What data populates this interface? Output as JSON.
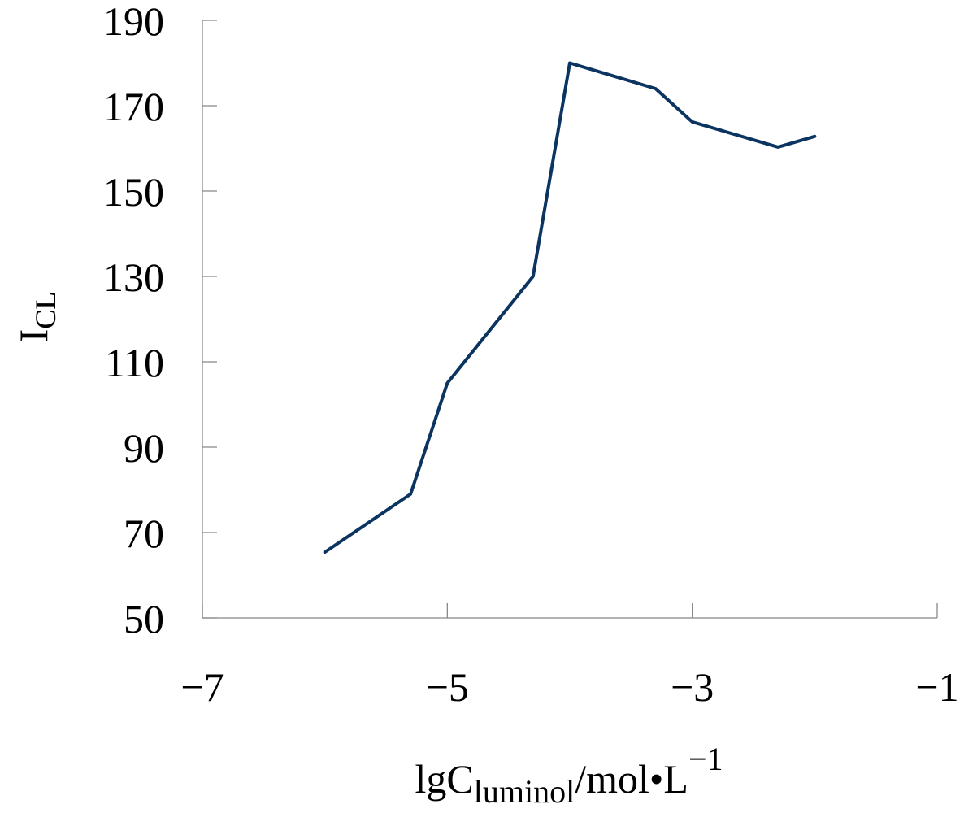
{
  "chart_data": {
    "type": "line",
    "x_label": [
      "lgC",
      "luminol",
      "/mol•L",
      "−1"
    ],
    "y_label": [
      "I",
      "CL"
    ],
    "x": [
      -6.0,
      -5.3,
      -5.0,
      -4.3,
      -4.0,
      -3.3,
      -3.0,
      -2.3,
      -2.0
    ],
    "series": [
      {
        "color": "#0b3461",
        "values": [
          65.4,
          79,
          105,
          130,
          180,
          174,
          166.2,
          160.3,
          162.8
        ]
      }
    ],
    "xlim": [
      -7,
      -1
    ],
    "xticks": [
      {
        "value": -7,
        "label": "−7"
      },
      {
        "value": -5,
        "label": "−5"
      },
      {
        "value": -3,
        "label": "−3"
      },
      {
        "value": -1,
        "label": "−1"
      }
    ],
    "ylim": [
      50,
      190
    ],
    "yticks": [
      50,
      70,
      90,
      110,
      130,
      150,
      170,
      190
    ],
    "grid": false
  }
}
